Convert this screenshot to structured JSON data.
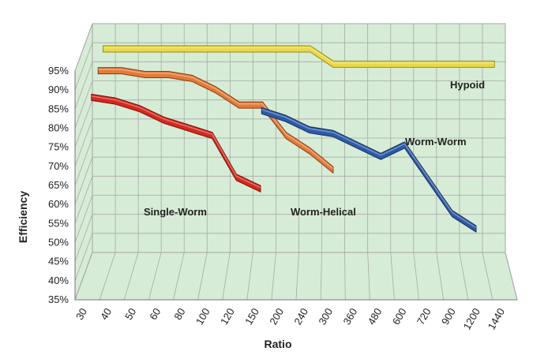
{
  "chart_data": {
    "type": "line",
    "style": "3d",
    "xlabel": "Ratio",
    "ylabel": "Efficiency",
    "categories": [
      "30",
      "40",
      "50",
      "60",
      "80",
      "100",
      "120",
      "150",
      "200",
      "240",
      "300",
      "360",
      "480",
      "600",
      "720",
      "900",
      "1200",
      "1440"
    ],
    "yticks": [
      "35%",
      "40%",
      "45%",
      "50%",
      "55%",
      "60%",
      "65%",
      "70%",
      "75%",
      "80%",
      "85%",
      "90%",
      "95%"
    ],
    "ylim": [
      35,
      95
    ],
    "grid": true,
    "wall_color": "#d6ecd6",
    "series": [
      {
        "name": "Hypoid",
        "color": "#e8d84a",
        "edge": "#9a8a14",
        "values": [
          89,
          89,
          89,
          89,
          89,
          89,
          89,
          89,
          89,
          89,
          85,
          85,
          85,
          85,
          85,
          85,
          85,
          85
        ]
      },
      {
        "name": "Worm-Helical",
        "color": "#e27b3a",
        "edge": "#8a3a10",
        "values": [
          87,
          87,
          86,
          86,
          85,
          82,
          78,
          78,
          70,
          66,
          61,
          null,
          null,
          null,
          null,
          null,
          null,
          null
        ]
      },
      {
        "name": "Worm-Worm",
        "color": "#2d5aa8",
        "edge": "#16305e",
        "values": [
          null,
          null,
          null,
          null,
          null,
          null,
          null,
          79,
          77,
          74,
          73,
          70,
          67,
          70,
          61,
          52,
          48,
          null
        ]
      },
      {
        "name": "Single-Worm",
        "color": "#d42a1f",
        "edge": "#7a0c06",
        "values": [
          85,
          84,
          82,
          79,
          77,
          75,
          64,
          61,
          null,
          null,
          null,
          null,
          null,
          null,
          null,
          null,
          null,
          null
        ]
      }
    ]
  }
}
